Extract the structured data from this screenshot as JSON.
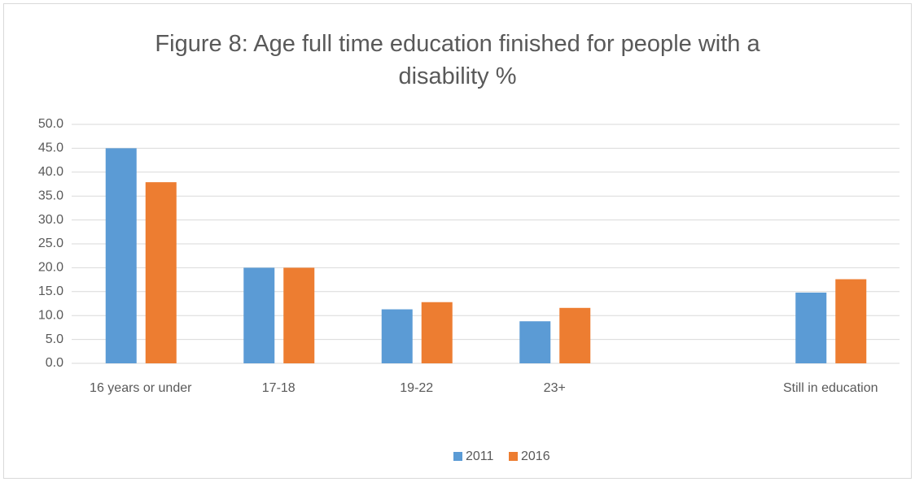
{
  "chart_data": {
    "type": "bar",
    "title": "Figure 8: Age full time education finished for people with a disability %",
    "categories": [
      "16 years or under",
      "17-18",
      "19-22",
      "23+",
      null,
      "Still in education"
    ],
    "series": [
      {
        "name": "2011",
        "color": "#5b9bd5",
        "values": [
          45.0,
          20.0,
          11.3,
          8.8,
          null,
          14.8
        ]
      },
      {
        "name": "2016",
        "color": "#ed7d31",
        "values": [
          37.9,
          20.0,
          12.8,
          11.6,
          null,
          17.6
        ]
      }
    ],
    "ylim": [
      0,
      50
    ],
    "yticks": [
      {
        "value": 0,
        "label": "0.0"
      },
      {
        "value": 5,
        "label": "5.0"
      },
      {
        "value": 10,
        "label": "10.0"
      },
      {
        "value": 15,
        "label": "15.0"
      },
      {
        "value": 20,
        "label": "20.0"
      },
      {
        "value": 25,
        "label": "25.0"
      },
      {
        "value": 30,
        "label": "30.0"
      },
      {
        "value": 35,
        "label": "35.0"
      },
      {
        "value": 40,
        "label": "40.0"
      },
      {
        "value": 45,
        "label": "45.0"
      },
      {
        "value": 50,
        "label": "50.0"
      }
    ],
    "grid": true,
    "legend": "bottom"
  }
}
